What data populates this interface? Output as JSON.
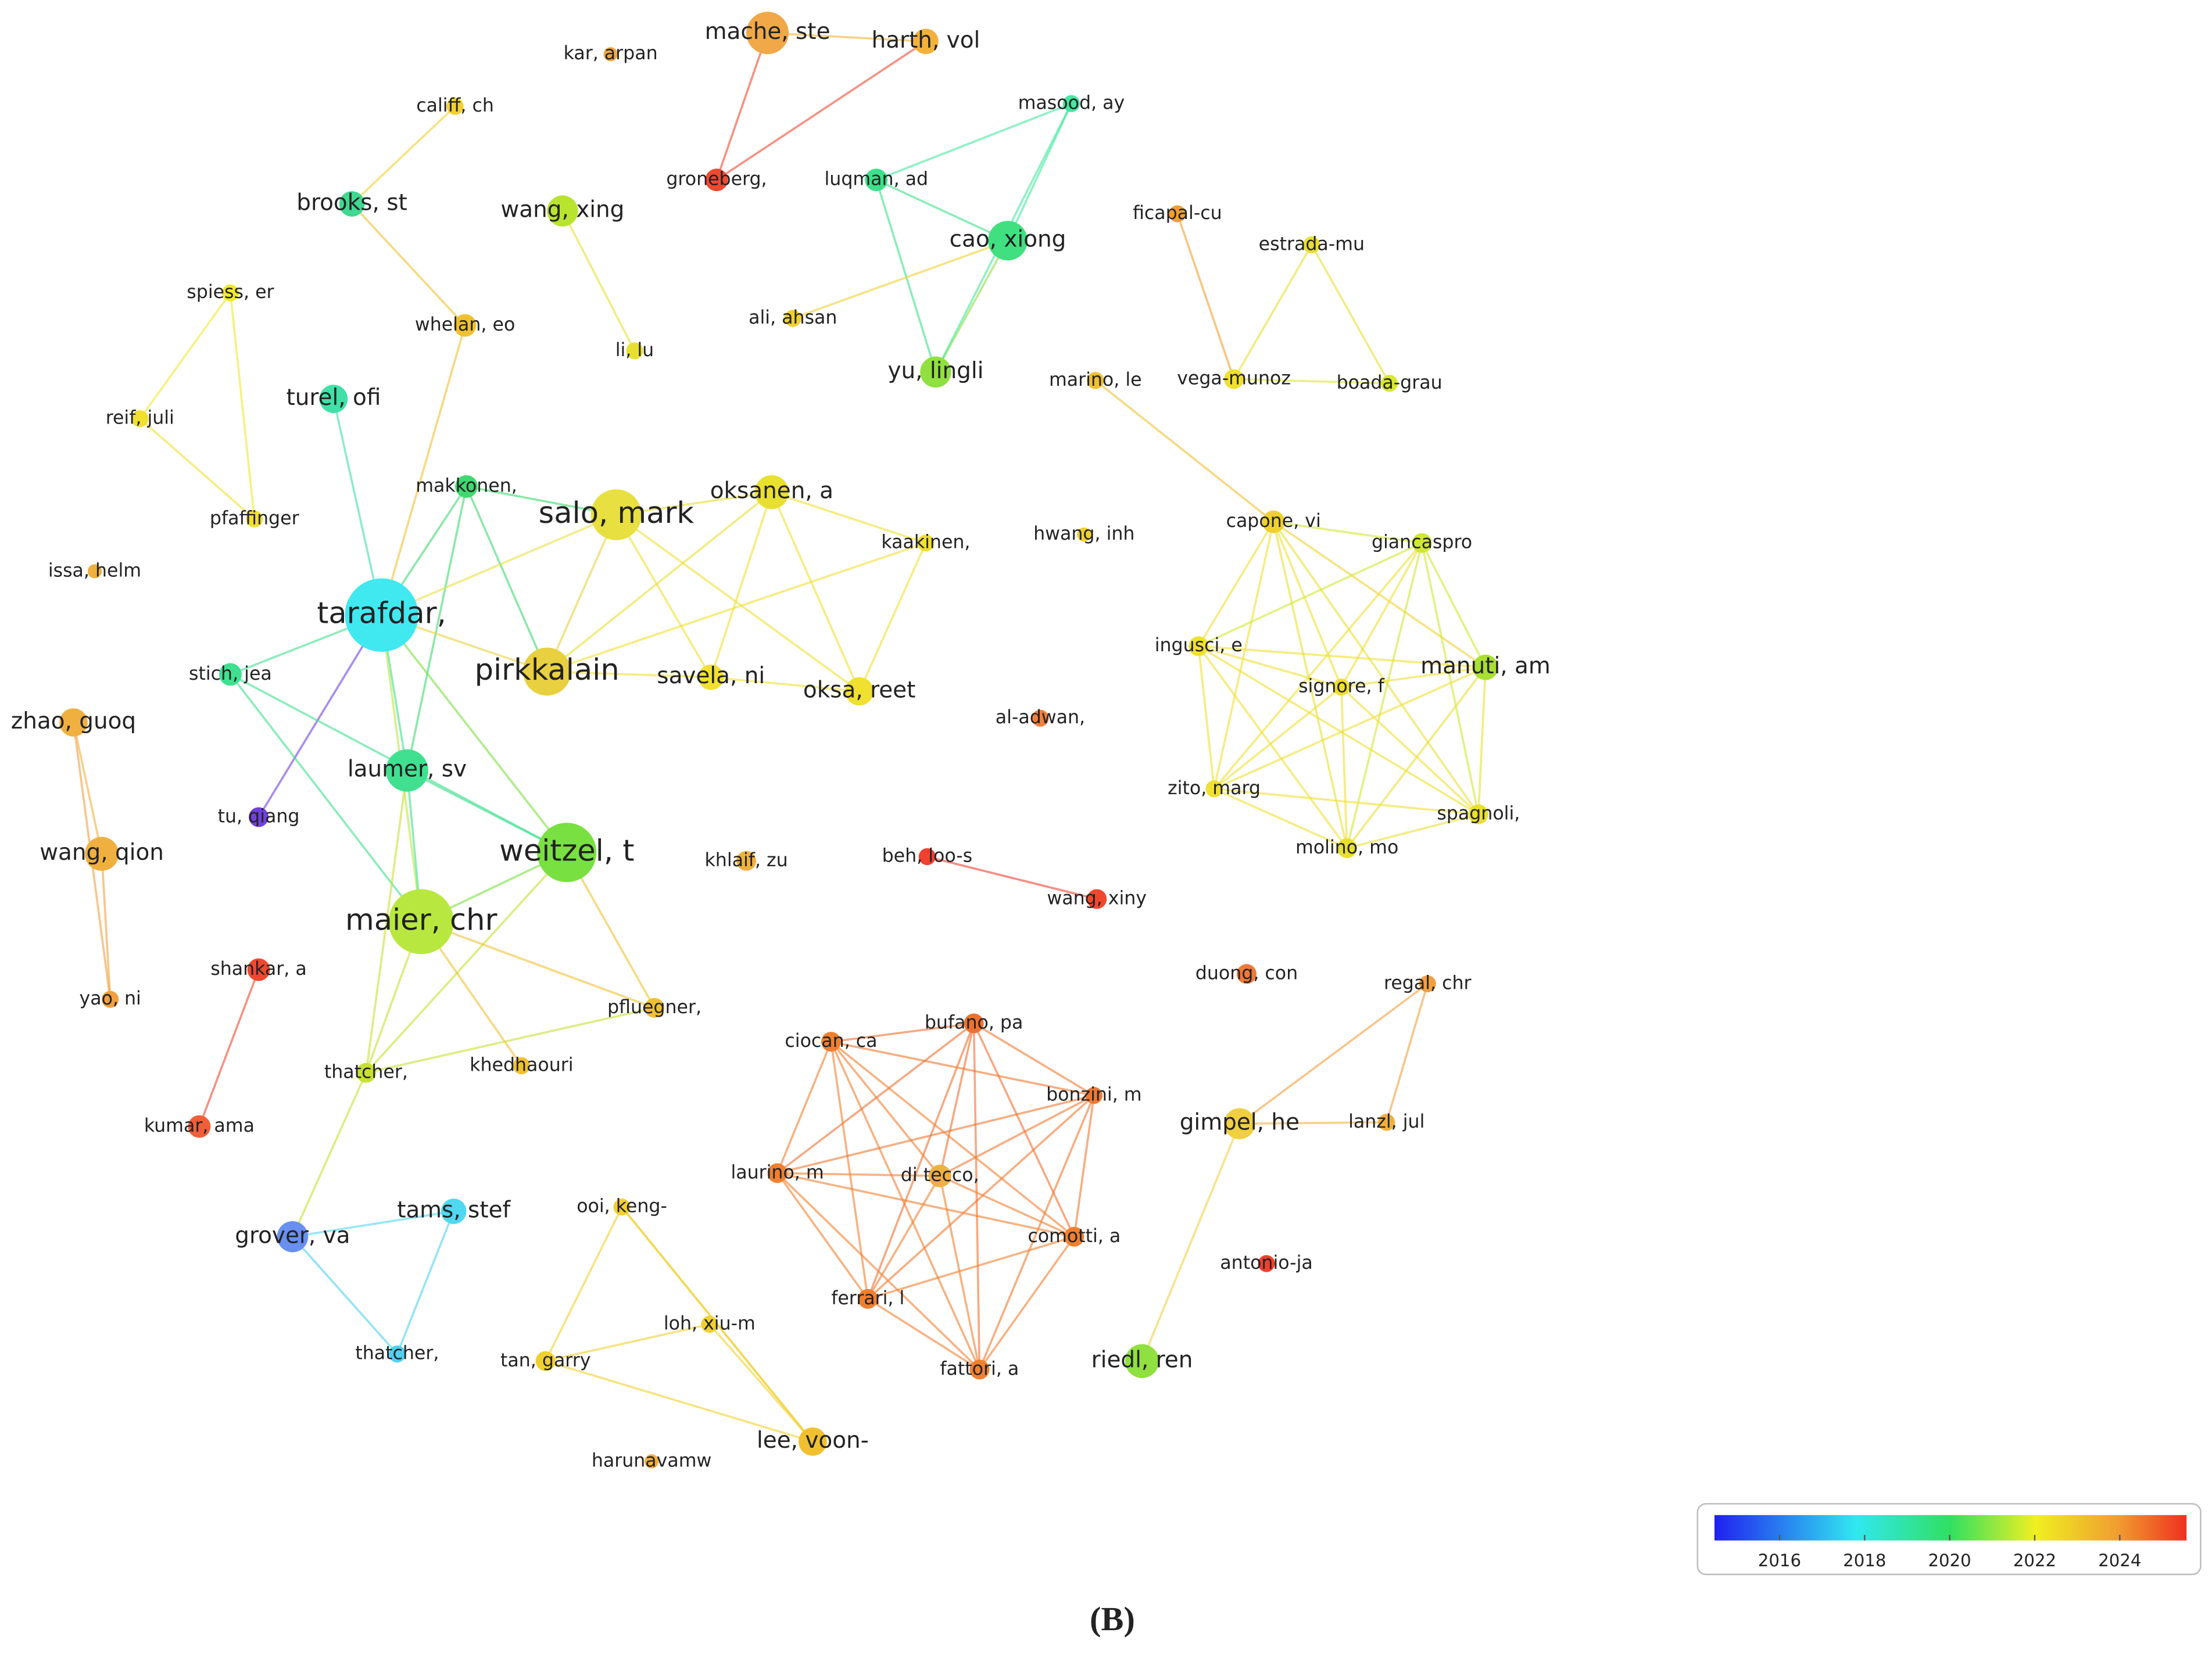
{
  "nodes": [
    {
      "label": "mache, ste"
    },
    {
      "label": "harth, vol"
    },
    {
      "label": "kar, arpan"
    },
    {
      "label": "califf, ch"
    },
    {
      "label": "masood, ay"
    },
    {
      "label": "groneberg,"
    },
    {
      "label": "luqman, ad"
    },
    {
      "label": "brooks, st"
    },
    {
      "label": "wang, xing"
    },
    {
      "label": "cao, xiong"
    },
    {
      "label": "ficapal-cu"
    },
    {
      "label": "estrada-mu"
    },
    {
      "label": "spiess, er"
    },
    {
      "label": "whelan, eo"
    },
    {
      "label": "ali, ahsan"
    },
    {
      "label": "li, lu"
    },
    {
      "label": "yu, lingli"
    },
    {
      "label": "marino, le"
    },
    {
      "label": "vega-munoz"
    },
    {
      "label": "boada-grau"
    },
    {
      "label": "turel, ofi"
    },
    {
      "label": "reif, juli"
    },
    {
      "label": "makkonen,"
    },
    {
      "label": "salo, mark"
    },
    {
      "label": "oksanen, a"
    },
    {
      "label": "pfaffinger"
    },
    {
      "label": "capone, vi"
    },
    {
      "label": "hwang, inh"
    },
    {
      "label": "kaakinen,"
    },
    {
      "label": "giancaspro"
    },
    {
      "label": "issa, helm"
    },
    {
      "label": "tarafdar,"
    },
    {
      "label": "ingusci, e"
    },
    {
      "label": "manuti, am"
    },
    {
      "label": "stich, jea"
    },
    {
      "label": "pirkkalain"
    },
    {
      "label": "savela, ni"
    },
    {
      "label": "oksa, reet"
    },
    {
      "label": "signore, f"
    },
    {
      "label": "al-adwan,"
    },
    {
      "label": "zhao, guoq"
    },
    {
      "label": "laumer, sv"
    },
    {
      "label": "zito, marg"
    },
    {
      "label": "spagnoli,"
    },
    {
      "label": "tu, qiang"
    },
    {
      "label": "weitzel, t"
    },
    {
      "label": "wang, qion"
    },
    {
      "label": "khlaif, zu"
    },
    {
      "label": "beh, loo-s"
    },
    {
      "label": "molino, mo"
    },
    {
      "label": "wang, xiny"
    },
    {
      "label": "maier, chr"
    },
    {
      "label": "shankar, a"
    },
    {
      "label": "duong, con"
    },
    {
      "label": "regal, chr"
    },
    {
      "label": "yao, ni"
    },
    {
      "label": "pfluegner,"
    },
    {
      "label": "bufano, pa"
    },
    {
      "label": "ciocan, ca"
    },
    {
      "label": "thatcher,"
    },
    {
      "label": "khedhaouri"
    },
    {
      "label": "bonzini, m"
    },
    {
      "label": "gimpel, he"
    },
    {
      "label": "lanzl, jul"
    },
    {
      "label": "kumar, ama"
    },
    {
      "label": "laurino, m"
    },
    {
      "label": "di tecco,"
    },
    {
      "label": "ooi, keng-"
    },
    {
      "label": "tams, stef"
    },
    {
      "label": "grover, va"
    },
    {
      "label": "comotti, a"
    },
    {
      "label": "antonio-ja"
    },
    {
      "label": "ferrari, l"
    },
    {
      "label": "loh, xiu-m"
    },
    {
      "label": "thatcher,"
    },
    {
      "label": "tan, garry"
    },
    {
      "label": "riedl, ren"
    },
    {
      "label": "fattori, a"
    },
    {
      "label": "lee, voon-"
    },
    {
      "label": "harunavamw"
    }
  ],
  "colorbar": {
    "range": [
      2014.47,
      2025.57
    ],
    "ticks": [
      2016,
      2018,
      2020,
      2022,
      2024
    ]
  },
  "caption": "(B)"
}
